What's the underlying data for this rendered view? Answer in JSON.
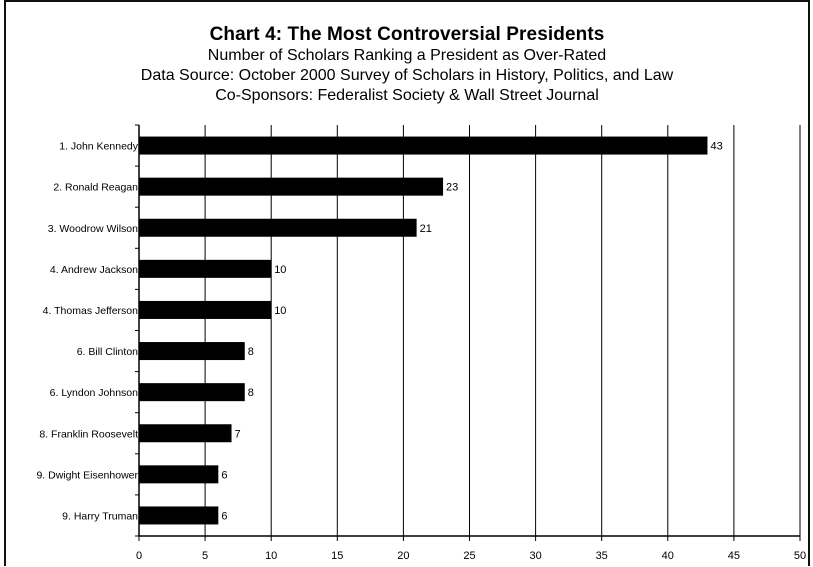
{
  "chart_data": {
    "type": "bar",
    "orientation": "horizontal",
    "title": "Chart 4: The Most Controversial Presidents",
    "subtitles": [
      "Number of Scholars Ranking a President as Over-Rated",
      "Data Source:  October 2000 Survey of Scholars in History, Politics, and Law",
      "Co-Sponsors:  Federalist Society & Wall Street Journal"
    ],
    "categories": [
      "1. John Kennedy",
      "2. Ronald Reagan",
      "3. Woodrow Wilson",
      "4. Andrew Jackson",
      "4. Thomas Jefferson",
      "6. Bill Clinton",
      "6. Lyndon Johnson",
      "8. Franklin Roosevelt",
      "9. Dwight Eisenhower",
      "9. Harry Truman"
    ],
    "values": [
      43,
      23,
      21,
      10,
      10,
      8,
      8,
      7,
      6,
      6
    ],
    "xlim": [
      0,
      50
    ],
    "xticks": [
      0,
      5,
      10,
      15,
      20,
      25,
      30,
      35,
      40,
      45,
      50
    ],
    "grid": "vertical",
    "legend": "none",
    "bar_color": "#000000",
    "grid_color": "#000000"
  }
}
